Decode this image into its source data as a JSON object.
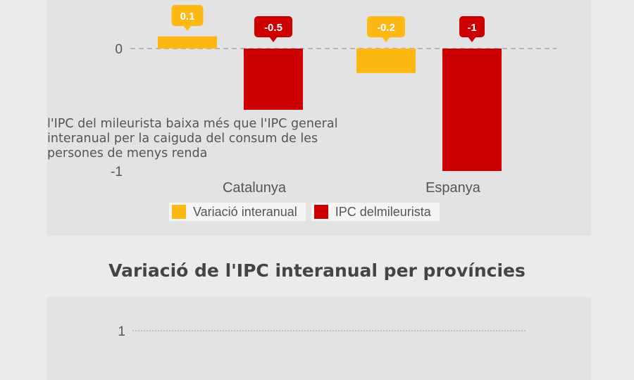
{
  "chart_data": [
    {
      "type": "bar",
      "categories": [
        "Catalunya",
        "Espanya"
      ],
      "series": [
        {
          "name": "Variació interanual",
          "values": [
            0.1,
            -0.2
          ],
          "color": "#fdb813"
        },
        {
          "name": "IPC delmileurista",
          "values": [
            -0.5,
            -1
          ],
          "color": "#cc0000"
        }
      ],
      "yticks": [
        0,
        -1
      ],
      "ylim": [
        -1,
        0.1
      ],
      "annotation": "l'IPC del mileurista baixa més que l'IPC general interanual per la caiguda del consum de les persones de menys renda",
      "legend_position": "bottom",
      "baseline_style": "dashed"
    },
    {
      "type": "bar",
      "title": "Variació de l'IPC interanual per províncies",
      "yticks": [
        1
      ],
      "gridline_style": "dotted"
    }
  ]
}
